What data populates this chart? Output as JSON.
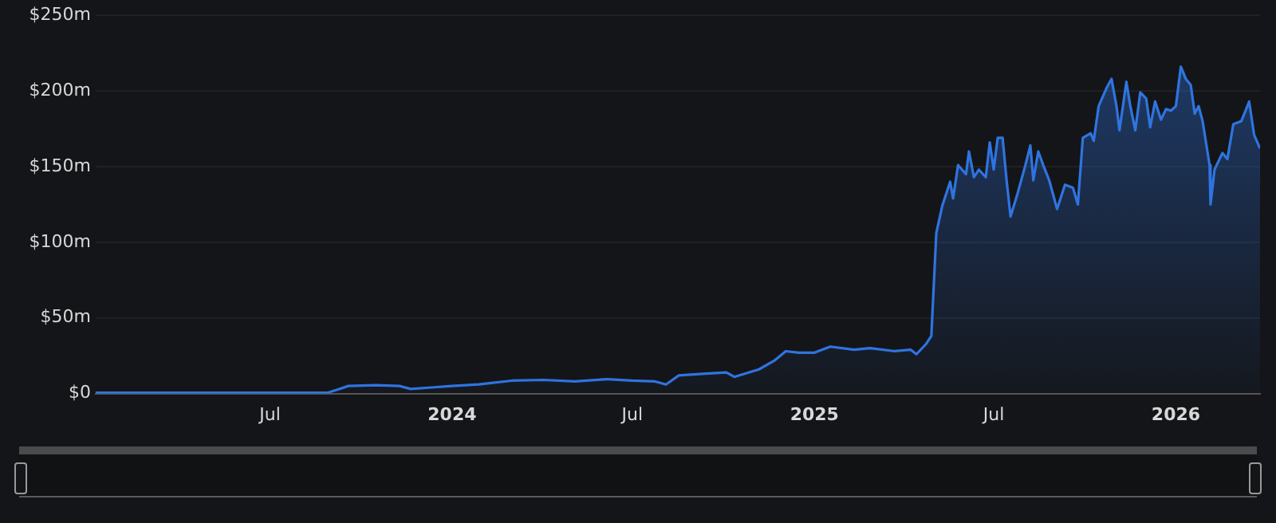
{
  "chart_data": {
    "type": "area",
    "x": [
      "2023-01-06",
      "2023-05-31",
      "2023-08-28",
      "2023-09-09",
      "2023-09-18",
      "2023-10-16",
      "2023-11-09",
      "2023-11-20",
      "2023-12-11",
      "2024-01-01",
      "2024-01-28",
      "2024-03-01",
      "2024-04-02",
      "2024-05-04",
      "2024-06-05",
      "2024-07-01",
      "2024-07-24",
      "2024-08-04",
      "2024-08-17",
      "2024-09-10",
      "2024-10-04",
      "2024-10-12",
      "2024-11-06",
      "2024-11-22",
      "2024-12-03",
      "2024-12-16",
      "2025-01-01",
      "2025-01-17",
      "2025-02-10",
      "2025-02-26",
      "2025-03-23",
      "2025-04-08",
      "2025-04-14",
      "2025-04-24",
      "2025-04-29",
      "2025-05-04",
      "2025-05-10",
      "2025-05-18",
      "2025-05-21",
      "2025-05-26",
      "2025-06-03",
      "2025-06-06",
      "2025-06-11",
      "2025-06-16",
      "2025-06-23",
      "2025-06-27",
      "2025-07-01",
      "2025-07-05",
      "2025-07-10",
      "2025-07-14",
      "2025-07-18",
      "2025-07-25",
      "2025-08-02",
      "2025-08-07",
      "2025-08-10",
      "2025-08-15",
      "2025-08-20",
      "2025-08-26",
      "2025-09-03",
      "2025-09-11",
      "2025-09-19",
      "2025-09-24",
      "2025-09-29",
      "2025-10-07",
      "2025-10-10",
      "2025-10-15",
      "2025-10-23",
      "2025-10-28",
      "2025-11-02",
      "2025-11-05",
      "2025-11-12",
      "2025-11-16",
      "2025-11-21",
      "2025-11-26",
      "2025-12-02",
      "2025-12-06",
      "2025-12-11",
      "2025-12-17",
      "2025-12-22",
      "2025-12-27",
      "2026-01-01",
      "2026-01-06",
      "2026-01-11",
      "2026-01-16",
      "2026-01-20",
      "2026-01-24",
      "2026-01-28",
      "2026-02-04",
      "2026-02-05",
      "2026-02-09",
      "2026-02-17",
      "2026-02-22",
      "2026-02-28",
      "2026-03-08",
      "2026-03-13",
      "2026-03-16",
      "2026-03-21",
      "2026-03-27"
    ],
    "series": [
      {
        "color": "#2f74e0",
        "values": [
          0.5,
          0.5,
          0.5,
          3,
          5,
          5.5,
          5,
          3,
          4,
          5,
          6,
          8.5,
          9,
          8,
          9.5,
          8.5,
          8,
          6,
          12,
          13,
          14,
          11,
          16,
          22,
          28,
          27,
          27,
          31,
          29,
          30,
          28,
          29,
          26,
          33,
          38,
          106,
          124,
          140,
          129,
          151,
          145,
          160,
          143,
          148,
          143,
          166,
          148,
          169,
          169,
          141,
          117,
          132,
          151,
          164,
          141,
          160,
          151,
          141,
          122,
          138,
          136,
          125,
          169,
          172,
          167,
          190,
          202,
          208,
          190,
          174,
          206,
          190,
          174,
          199,
          195,
          176,
          193,
          181,
          188,
          187,
          190,
          216,
          208,
          204,
          185,
          190,
          180,
          151,
          125,
          148,
          159,
          155,
          178,
          180,
          188,
          193,
          171,
          162
        ]
      }
    ],
    "xlim": [
      "2023-01-06",
      "2026-03-27"
    ],
    "xticks": [
      {
        "value": "2023-07-01",
        "label": "Jul"
      },
      {
        "value": "2024-01-01",
        "label": "2024"
      },
      {
        "value": "2024-07-01",
        "label": "Jul"
      },
      {
        "value": "2025-01-01",
        "label": "2025"
      },
      {
        "value": "2025-07-01",
        "label": "Jul"
      },
      {
        "value": "2026-01-01",
        "label": "2026"
      }
    ],
    "ylim": [
      0,
      250
    ],
    "yticks": [
      {
        "value": 0,
        "label": "$0"
      },
      {
        "value": 50,
        "label": "$50m"
      },
      {
        "value": 100,
        "label": "$100m"
      },
      {
        "value": 150,
        "label": "$150m"
      },
      {
        "value": 200,
        "label": "$200m"
      },
      {
        "value": 250,
        "label": "$250m"
      }
    ],
    "grid": "y",
    "legend": false,
    "marker": "none",
    "line_style": "solid"
  }
}
